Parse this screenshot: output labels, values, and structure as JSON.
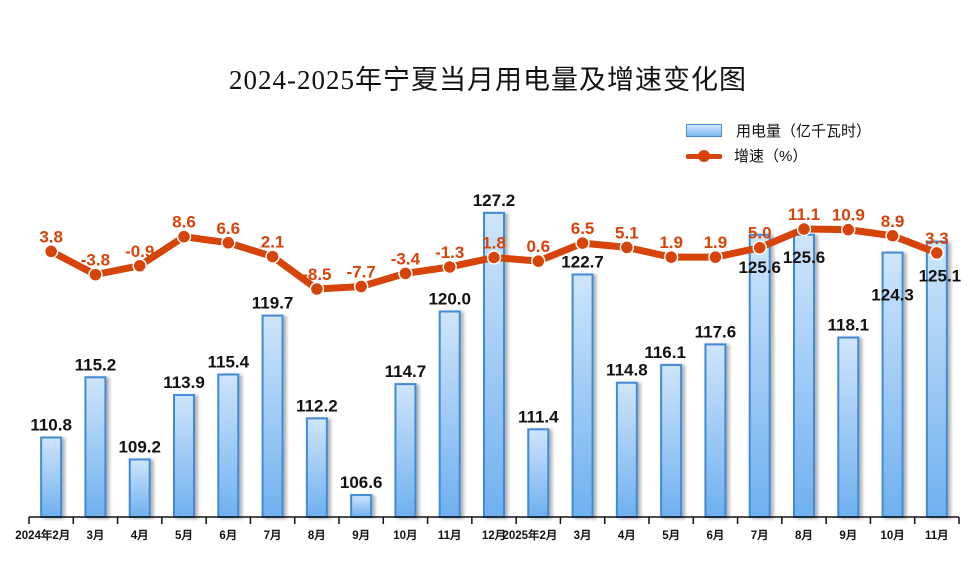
{
  "chart_data": {
    "type": "bar+line",
    "title": "2024-2025年宁夏当月用电量及增速变化图",
    "legend": {
      "position": "top-right",
      "entries": [
        {
          "name": "用电量（亿千瓦时）",
          "kind": "bar"
        },
        {
          "name": "增速（%）",
          "kind": "line"
        }
      ]
    },
    "categories": [
      "2024年2月",
      "3月",
      "4月",
      "5月",
      "6月",
      "7月",
      "8月",
      "9月",
      "10月",
      "11月",
      "12月",
      "2025年2月",
      "3月",
      "4月",
      "5月",
      "6月",
      "7月",
      "8月",
      "9月",
      "10月",
      "11月"
    ],
    "series": [
      {
        "name": "用电量（亿千瓦时）",
        "type": "bar",
        "axis": "left",
        "values": [
          110.8,
          115.2,
          109.2,
          113.9,
          115.4,
          119.7,
          112.2,
          106.6,
          114.7,
          120.0,
          127.2,
          111.4,
          122.7,
          114.8,
          116.1,
          117.6,
          125.6,
          125.6,
          118.1,
          124.3,
          125.1
        ],
        "labels": [
          "110.8",
          "115.2",
          "109.2",
          "113.9",
          "115.4",
          "119.7",
          "112.2",
          "106.6",
          "114.7",
          "120.0",
          "127.2",
          "111.4",
          "122.7",
          "114.8",
          "116.1",
          "117.6",
          "125.6",
          "125.6",
          "118.1",
          "124.3",
          "125.1"
        ],
        "color": "#5aa5ea"
      },
      {
        "name": "增速（%）",
        "type": "line",
        "axis": "right",
        "values": [
          3.8,
          -3.8,
          -0.9,
          8.6,
          6.6,
          2.1,
          -8.5,
          -7.7,
          -3.4,
          -1.3,
          1.8,
          0.6,
          6.5,
          5.1,
          1.9,
          1.9,
          5.0,
          11.1,
          10.9,
          8.9,
          3.3
        ],
        "labels": [
          "3.8",
          "-3.8",
          "-0.9",
          "8.6",
          "6.6",
          "2.1",
          "-8.5",
          "-7.7",
          "-3.4",
          "-1.3",
          "1.8",
          "0.6",
          "6.5",
          "5.1",
          "1.9",
          "1.9",
          "5.0",
          "11.1",
          "10.9",
          "8.9",
          "3.3"
        ],
        "color": "#d7440a"
      }
    ],
    "bar_axis_range": [
      105,
      128
    ],
    "line_axis_range": [
      -20,
      14
    ],
    "grid": false,
    "xlabel": "",
    "ylabel": ""
  }
}
